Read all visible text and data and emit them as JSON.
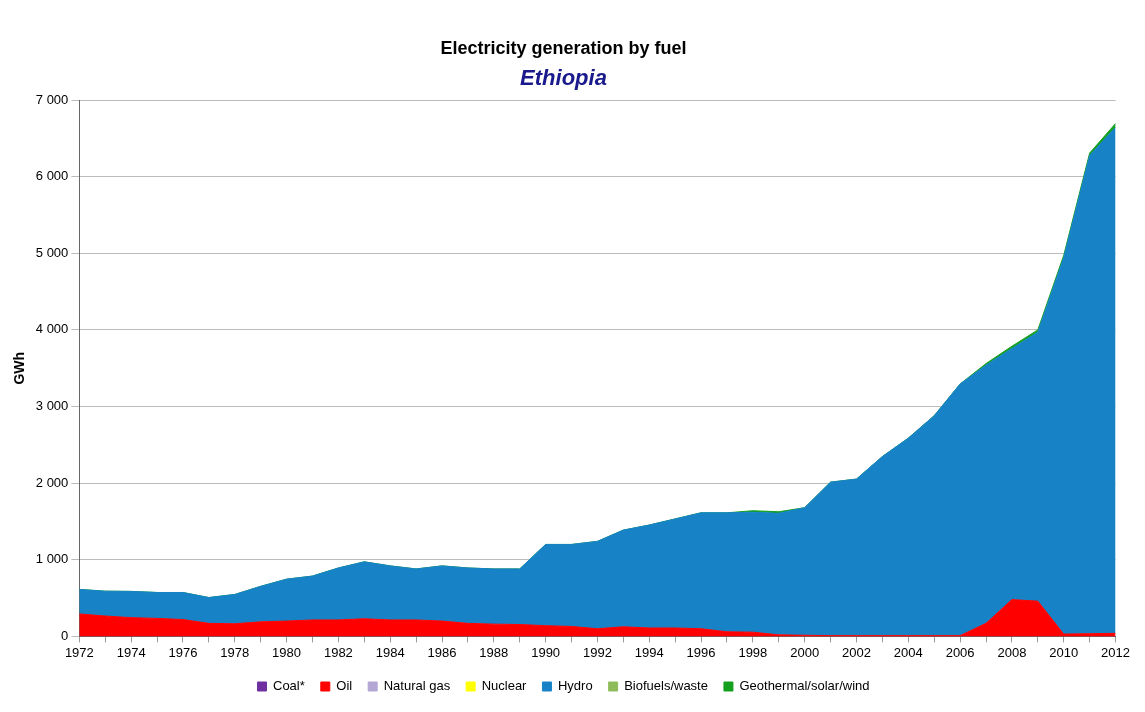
{
  "chart_data": {
    "type": "area",
    "stacked": true,
    "title": "Electricity generation by fuel",
    "subtitle": "Ethiopia",
    "ylabel": "GWh",
    "x": [
      1972,
      1973,
      1974,
      1975,
      1976,
      1977,
      1978,
      1979,
      1980,
      1981,
      1982,
      1983,
      1984,
      1985,
      1986,
      1987,
      1988,
      1989,
      1990,
      1991,
      1992,
      1993,
      1994,
      1995,
      1996,
      1997,
      1998,
      1999,
      2000,
      2001,
      2002,
      2003,
      2004,
      2005,
      2006,
      2007,
      2008,
      2009,
      2010,
      2011,
      2012
    ],
    "xlim": [
      1972,
      2012
    ],
    "xticks": [
      1972,
      {
        "value": 1973,
        "label": null
      },
      1974,
      {
        "value": 1975,
        "label": null
      },
      1976,
      {
        "value": 1977,
        "label": null
      },
      1978,
      {
        "value": 1979,
        "label": null
      },
      1980,
      {
        "value": 1981,
        "label": null
      },
      1982,
      {
        "value": 1983,
        "label": null
      },
      1984,
      {
        "value": 1985,
        "label": null
      },
      1986,
      {
        "value": 1987,
        "label": null
      },
      1988,
      {
        "value": 1989,
        "label": null
      },
      1990,
      {
        "value": 1991,
        "label": null
      },
      1992,
      {
        "value": 1993,
        "label": null
      },
      1994,
      {
        "value": 1995,
        "label": null
      },
      1996,
      {
        "value": 1997,
        "label": null
      },
      1998,
      {
        "value": 1999,
        "label": null
      },
      2000,
      {
        "value": 2001,
        "label": null
      },
      2002,
      {
        "value": 2003,
        "label": null
      },
      2004,
      {
        "value": 2005,
        "label": null
      },
      2006,
      {
        "value": 2007,
        "label": null
      },
      2008,
      {
        "value": 2009,
        "label": null
      },
      2010,
      {
        "value": 2011,
        "label": null
      },
      2012
    ],
    "ylim": [
      0,
      7000
    ],
    "yticks": [
      0,
      {
        "value": 1000,
        "label": "1 000"
      },
      {
        "value": 2000,
        "label": "2 000"
      },
      {
        "value": 3000,
        "label": "3 000"
      },
      {
        "value": 4000,
        "label": "4 000"
      },
      {
        "value": 5000,
        "label": "5 000"
      },
      {
        "value": 6000,
        "label": "6 000"
      },
      {
        "value": 7000,
        "label": "7 000"
      }
    ],
    "grid": "y",
    "legend": "bottom",
    "series": [
      {
        "name": "Coal*",
        "color": "#7030a0",
        "values": [
          null,
          null,
          null,
          null,
          null,
          null,
          null,
          null,
          null,
          null,
          null,
          null,
          null,
          null,
          null,
          null,
          null,
          null,
          null,
          null,
          null,
          null,
          null,
          null,
          null,
          null,
          null,
          null,
          null,
          null,
          null,
          null,
          null,
          null,
          null,
          null,
          null,
          null,
          null,
          null,
          null
        ]
      },
      {
        "name": "Oil",
        "color": "#ff0000",
        "values": [
          293,
          266,
          245,
          235,
          220,
          170,
          165,
          190,
          200,
          215,
          215,
          230,
          215,
          215,
          200,
          170,
          160,
          155,
          140,
          130,
          100,
          125,
          110,
          110,
          100,
          60,
          55,
          20,
          15,
          10,
          10,
          10,
          10,
          10,
          10,
          170,
          480,
          460,
          30,
          35,
          40
        ]
      },
      {
        "name": "Natural gas",
        "color": "#b4a7d6",
        "values": [
          null,
          null,
          null,
          null,
          null,
          null,
          null,
          null,
          null,
          null,
          null,
          null,
          null,
          null,
          null,
          null,
          null,
          null,
          null,
          null,
          null,
          null,
          null,
          null,
          null,
          null,
          null,
          null,
          null,
          null,
          null,
          null,
          null,
          null,
          null,
          null,
          null,
          null,
          null,
          null,
          null
        ]
      },
      {
        "name": "Nuclear",
        "color": "#ffff00",
        "values": [
          null,
          null,
          null,
          null,
          null,
          null,
          null,
          null,
          null,
          null,
          null,
          null,
          null,
          null,
          null,
          null,
          null,
          null,
          null,
          null,
          null,
          null,
          null,
          null,
          null,
          null,
          null,
          null,
          null,
          null,
          null,
          null,
          null,
          null,
          null,
          null,
          null,
          null,
          null,
          null,
          null
        ]
      },
      {
        "name": "Hydro",
        "color": "#1783c6",
        "values": [
          320,
          324,
          342,
          338,
          353,
          337,
          382,
          463,
          547,
          572,
          678,
          743,
          705,
          665,
          720,
          723,
          720,
          725,
          1060,
          1070,
          1140,
          1262,
          1343,
          1423,
          1513,
          1553,
          1565,
          1587,
          1665,
          2003,
          2043,
          2337,
          2577,
          2870,
          3283,
          3370,
          3277,
          3510,
          4913,
          6242,
          6603
        ]
      },
      {
        "name": "Biofuels/waste",
        "color": "#8fbc5a",
        "values": [
          null,
          null,
          null,
          null,
          null,
          null,
          null,
          null,
          null,
          null,
          null,
          null,
          null,
          null,
          null,
          null,
          null,
          null,
          null,
          null,
          null,
          null,
          null,
          null,
          null,
          null,
          null,
          null,
          null,
          null,
          null,
          null,
          null,
          null,
          null,
          null,
          null,
          null,
          null,
          null,
          null
        ]
      },
      {
        "name": "Geothermal/solar/wind",
        "color": "#14a01e",
        "values": [
          0,
          0,
          0,
          0,
          0,
          0,
          0,
          0,
          0,
          0,
          0,
          0,
          0,
          0,
          0,
          0,
          0,
          0,
          0,
          0,
          0,
          0,
          0,
          0,
          0,
          0,
          20,
          20,
          0,
          0,
          0,
          0,
          0,
          0,
          0,
          20,
          30,
          30,
          30,
          30,
          50
        ]
      }
    ]
  }
}
